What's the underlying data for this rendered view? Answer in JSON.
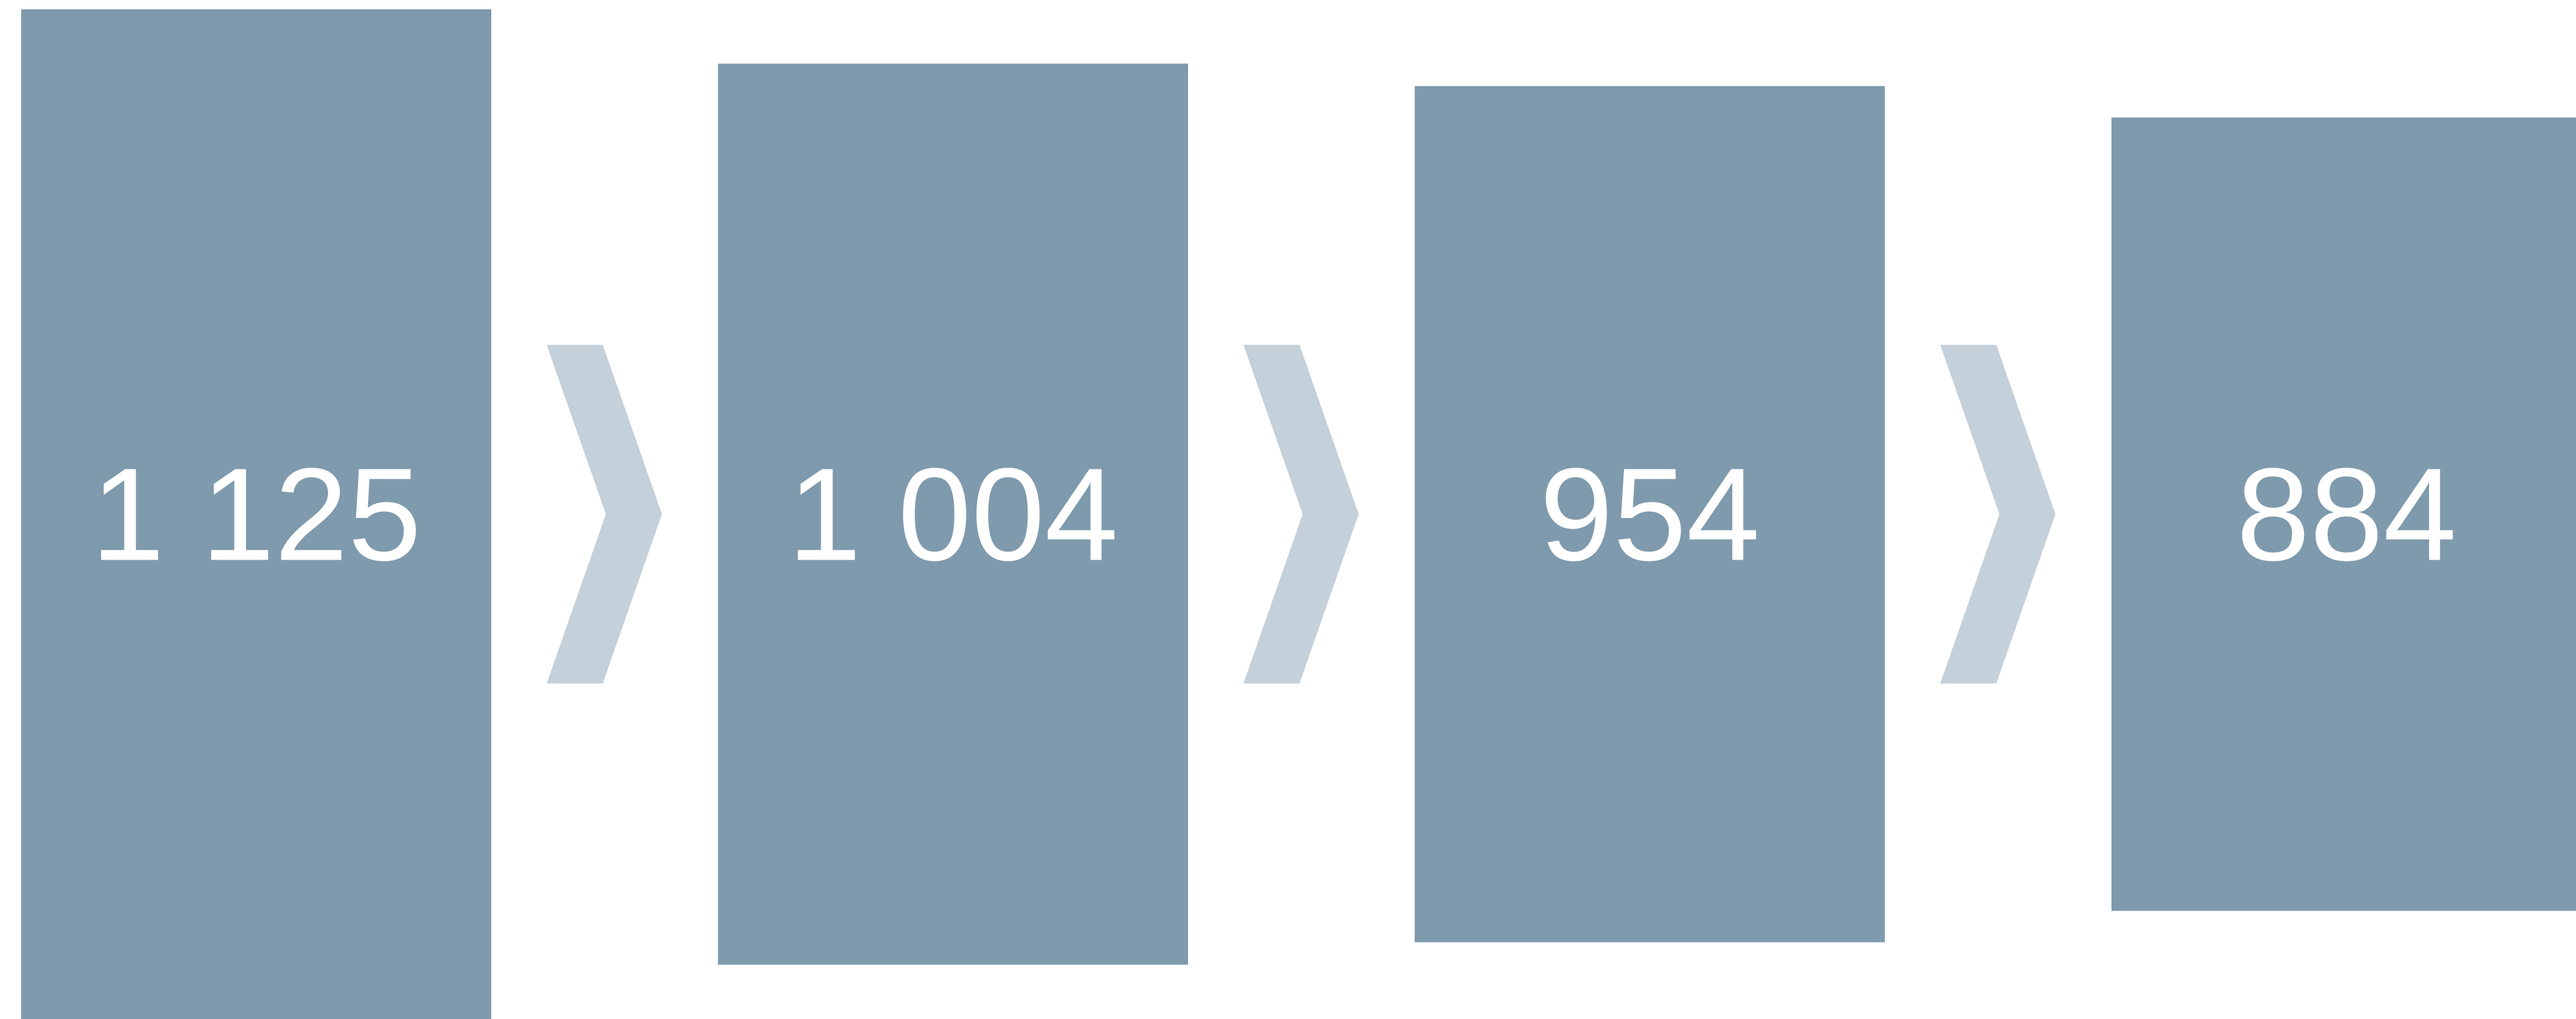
{
  "chart_data": {
    "type": "funnel",
    "values": [
      1125,
      1004,
      954,
      884
    ],
    "value_labels": [
      "1 125",
      "1 004",
      "954",
      "884"
    ],
    "color": "#7f9aad",
    "connector_color": "#c4d0da"
  }
}
